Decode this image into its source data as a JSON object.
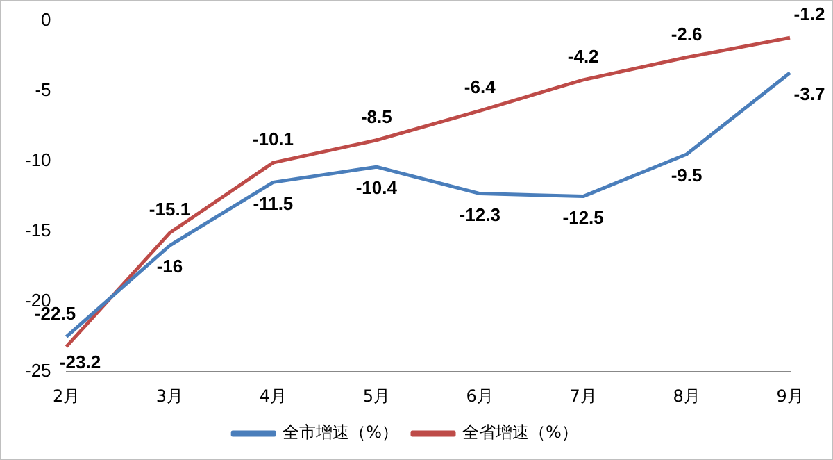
{
  "chart_data": {
    "type": "line",
    "categories": [
      "2月",
      "3月",
      "4月",
      "5月",
      "6月",
      "7月",
      "8月",
      "9月"
    ],
    "series": [
      {
        "name": "全市增速（%）",
        "color": "#4a7ebb",
        "values": [
          -22.5,
          -16,
          -11.5,
          -10.4,
          -12.3,
          -12.5,
          -9.5,
          -3.7
        ]
      },
      {
        "name": "全省增速（%）",
        "color": "#be4b48",
        "values": [
          -23.2,
          -15.1,
          -10.1,
          -8.5,
          -6.4,
          -4.2,
          -2.6,
          -1.2
        ]
      }
    ],
    "ylim": [
      -25,
      0
    ],
    "yticks": [
      -25,
      -20,
      -15,
      -10,
      -5,
      0
    ],
    "grid": false,
    "legend": "bottom",
    "marker": "none",
    "line_style": "solid",
    "data_labels": true
  }
}
